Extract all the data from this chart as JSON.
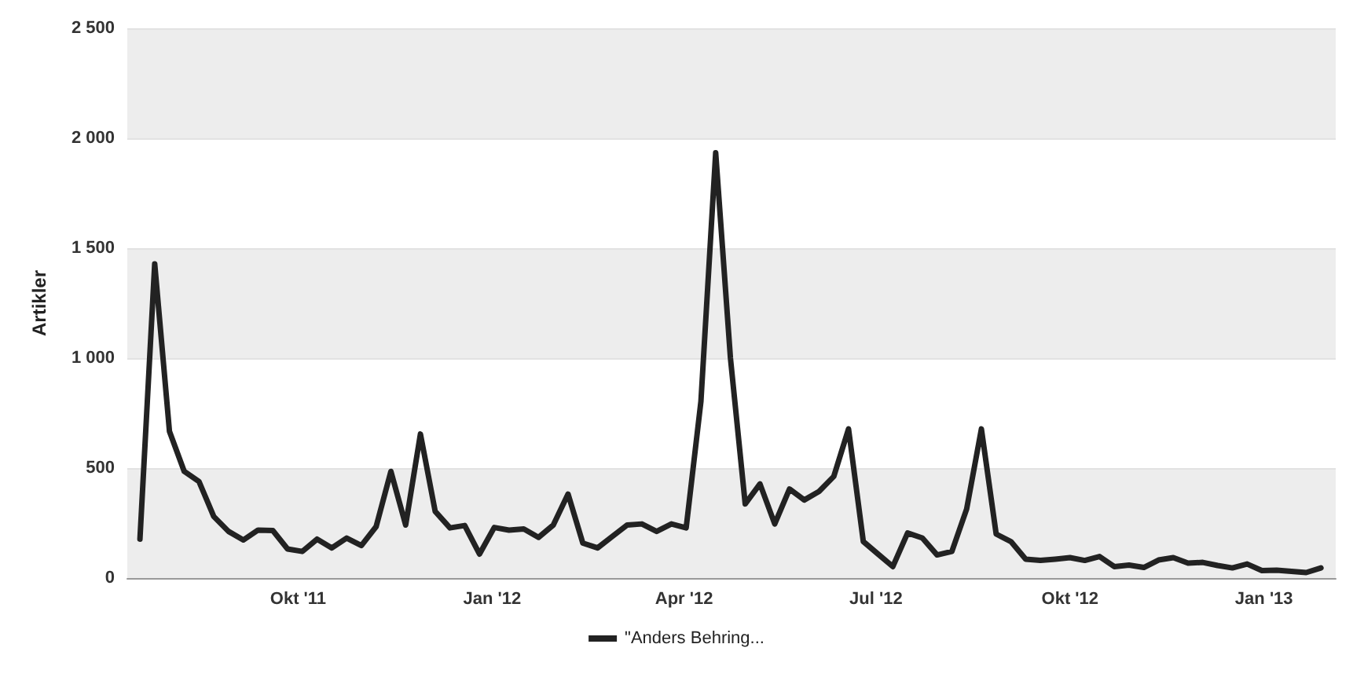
{
  "chart_data": {
    "type": "line",
    "ylabel": "Artikler",
    "x": [
      "2011-07-18",
      "2011-07-25",
      "2011-08-01",
      "2011-08-08",
      "2011-08-15",
      "2011-08-22",
      "2011-08-29",
      "2011-09-05",
      "2011-09-12",
      "2011-09-19",
      "2011-09-26",
      "2011-10-03",
      "2011-10-10",
      "2011-10-17",
      "2011-10-24",
      "2011-10-31",
      "2011-11-07",
      "2011-11-14",
      "2011-11-21",
      "2011-11-28",
      "2011-12-05",
      "2011-12-12",
      "2011-12-19",
      "2011-12-26",
      "2012-01-02",
      "2012-01-09",
      "2012-01-16",
      "2012-01-23",
      "2012-01-30",
      "2012-02-06",
      "2012-02-13",
      "2012-02-20",
      "2012-02-27",
      "2012-03-05",
      "2012-03-12",
      "2012-03-19",
      "2012-03-26",
      "2012-04-02",
      "2012-04-09",
      "2012-04-16",
      "2012-04-23",
      "2012-04-30",
      "2012-05-07",
      "2012-05-14",
      "2012-05-21",
      "2012-05-28",
      "2012-06-04",
      "2012-06-11",
      "2012-06-18",
      "2012-06-25",
      "2012-07-02",
      "2012-07-09",
      "2012-07-16",
      "2012-07-23",
      "2012-07-30",
      "2012-08-06",
      "2012-08-13",
      "2012-08-20",
      "2012-08-27",
      "2012-09-03",
      "2012-09-10",
      "2012-09-17",
      "2012-09-24",
      "2012-10-01",
      "2012-10-08",
      "2012-10-15",
      "2012-10-22",
      "2012-10-29",
      "2012-11-05",
      "2012-11-12",
      "2012-11-19",
      "2012-11-26",
      "2012-12-03",
      "2012-12-10",
      "2012-12-17",
      "2012-12-24",
      "2012-12-31",
      "2013-01-07",
      "2013-01-14",
      "2013-01-21",
      "2013-01-28"
    ],
    "series": [
      {
        "name": "\"Anders Behring...",
        "color": "#222222",
        "values": [
          177,
          1429,
          667,
          485,
          439,
          280,
          212,
          173,
          218,
          216,
          132,
          121,
          177,
          137,
          182,
          148,
          234,
          485,
          241,
          655,
          303,
          228,
          239,
          109,
          230,
          218,
          223,
          185,
          241,
          382,
          159,
          137,
          189,
          241,
          246,
          212,
          246,
          228,
          803,
          1934,
          1000,
          337,
          428,
          246,
          405,
          355,
          394,
          462,
          678,
          166,
          109,
          52,
          205,
          182,
          105,
          121,
          314,
          678,
          200,
          166,
          86,
          80,
          86,
          93,
          80,
          98,
          52,
          59,
          48,
          82,
          93,
          68,
          71,
          57,
          46,
          64,
          34,
          36,
          30,
          25,
          46
        ]
      }
    ],
    "xlim": [
      "2011-07-12",
      "2013-02-04"
    ],
    "xticks": [
      {
        "value": "2011-10-01",
        "label": "Okt '11"
      },
      {
        "value": "2012-01-01",
        "label": "Jan '12"
      },
      {
        "value": "2012-04-01",
        "label": "Apr '12"
      },
      {
        "value": "2012-07-01",
        "label": "Jul '12"
      },
      {
        "value": "2012-10-01",
        "label": "Okt '12"
      },
      {
        "value": "2013-01-01",
        "label": "Jan '13"
      }
    ],
    "ylim": [
      0,
      2500
    ],
    "yticks": [
      0,
      500,
      {
        "value": 1000,
        "label": "1 000"
      },
      {
        "value": 1500,
        "label": "1 500"
      },
      {
        "value": 2000,
        "label": "2 000"
      },
      {
        "value": 2500,
        "label": "2 500"
      }
    ],
    "grid": "y",
    "legend": "bottom",
    "marker": "none",
    "line_style": "solid"
  }
}
